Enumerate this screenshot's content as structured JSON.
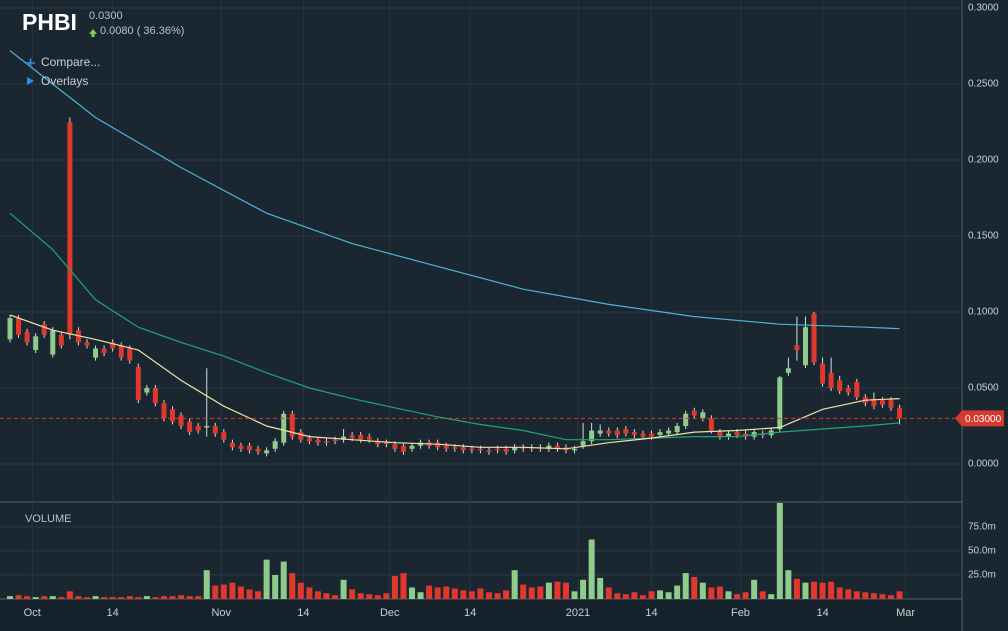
{
  "chart_data": {
    "type": "candlestick",
    "title": "PHBI",
    "last_price": "0.0300",
    "change": "0.0080 ( 36.36%)",
    "controls": [
      "Compare...",
      "Overlays"
    ],
    "volume_title": "VOLUME",
    "xlim": [
      -1.17,
      111.3
    ],
    "xticks": [
      {
        "value": 2.6,
        "label": "Oct"
      },
      {
        "value": 12,
        "label": "14"
      },
      {
        "value": 24.7,
        "label": "Nov"
      },
      {
        "value": 34.3,
        "label": "14"
      },
      {
        "value": 44.4,
        "label": "Dec"
      },
      {
        "value": 53.8,
        "label": "14"
      },
      {
        "value": 66.4,
        "label": "2021"
      },
      {
        "value": 75,
        "label": "14"
      },
      {
        "value": 85.4,
        "label": "Feb"
      },
      {
        "value": 95,
        "label": "14"
      },
      {
        "value": 104.7,
        "label": "Mar"
      }
    ],
    "ylim": [
      -0.0237,
      0.3053
    ],
    "yticks": [
      {
        "value": 0,
        "label": "0.0000"
      },
      {
        "value": 0.05,
        "label": "0.0500"
      },
      {
        "value": 0.1,
        "label": "0.1000"
      },
      {
        "value": 0.15,
        "label": "0.1500"
      },
      {
        "value": 0.2,
        "label": "0.2000"
      },
      {
        "value": 0.25,
        "label": "0.2500"
      },
      {
        "value": 0.3,
        "label": "0.3000"
      }
    ],
    "current": {
      "value": 0.03,
      "label": "0.03000",
      "color": "#d63a2f"
    },
    "up_color": "#8fcb8b",
    "down_color": "#e0382c",
    "open": [
      0.082,
      0.096,
      0.087,
      0.075,
      0.092,
      0.072,
      0.085,
      0.225,
      0.088,
      0.08,
      0.07,
      0.076,
      0.08,
      0.078,
      0.076,
      0.064,
      0.047,
      0.05,
      0.04,
      0.036,
      0.032,
      0.028,
      0.025,
      0.024,
      0.025,
      0.021,
      0.014,
      0.012,
      0.012,
      0.01,
      0.007,
      0.01,
      0.014,
      0.033,
      0.021,
      0.017,
      0.016,
      0.015,
      0.016,
      0.016,
      0.019,
      0.019,
      0.018,
      0.015,
      0.014,
      0.013,
      0.012,
      0.01,
      0.012,
      0.014,
      0.014,
      0.012,
      0.011,
      0.011,
      0.01,
      0.01,
      0.009,
      0.01,
      0.01,
      0.009,
      0.011,
      0.011,
      0.011,
      0.01,
      0.012,
      0.011,
      0.009,
      0.012,
      0.015,
      0.02,
      0.022,
      0.022,
      0.023,
      0.021,
      0.02,
      0.02,
      0.019,
      0.02,
      0.021,
      0.025,
      0.035,
      0.03,
      0.03,
      0.021,
      0.018,
      0.021,
      0.02,
      0.018,
      0.02,
      0.019,
      0.023,
      0.06,
      0.078,
      0.065,
      0.099,
      0.066,
      0.06,
      0.055,
      0.05,
      0.054,
      0.044,
      0.043,
      0.042,
      0.042,
      0.037
    ],
    "high": [
      0.098,
      0.098,
      0.089,
      0.086,
      0.094,
      0.09,
      0.087,
      0.228,
      0.09,
      0.082,
      0.078,
      0.078,
      0.082,
      0.08,
      0.078,
      0.066,
      0.052,
      0.052,
      0.042,
      0.038,
      0.034,
      0.03,
      0.027,
      0.063,
      0.027,
      0.023,
      0.016,
      0.014,
      0.014,
      0.012,
      0.011,
      0.017,
      0.035,
      0.035,
      0.023,
      0.019,
      0.018,
      0.017,
      0.018,
      0.023,
      0.021,
      0.021,
      0.02,
      0.017,
      0.016,
      0.015,
      0.014,
      0.014,
      0.016,
      0.016,
      0.016,
      0.014,
      0.013,
      0.013,
      0.012,
      0.012,
      0.011,
      0.012,
      0.012,
      0.013,
      0.013,
      0.013,
      0.013,
      0.014,
      0.014,
      0.013,
      0.012,
      0.027,
      0.027,
      0.026,
      0.024,
      0.024,
      0.025,
      0.023,
      0.022,
      0.022,
      0.023,
      0.024,
      0.027,
      0.035,
      0.037,
      0.036,
      0.032,
      0.023,
      0.022,
      0.023,
      0.022,
      0.023,
      0.022,
      0.024,
      0.058,
      0.07,
      0.097,
      0.097,
      0.1,
      0.07,
      0.07,
      0.058,
      0.052,
      0.056,
      0.046,
      0.047,
      0.044,
      0.044,
      0.039
    ],
    "low": [
      0.08,
      0.083,
      0.078,
      0.073,
      0.083,
      0.07,
      0.076,
      0.082,
      0.078,
      0.076,
      0.068,
      0.071,
      0.074,
      0.068,
      0.066,
      0.04,
      0.045,
      0.038,
      0.028,
      0.026,
      0.023,
      0.019,
      0.02,
      0.018,
      0.018,
      0.014,
      0.009,
      0.008,
      0.007,
      0.006,
      0.005,
      0.008,
      0.012,
      0.016,
      0.014,
      0.013,
      0.012,
      0.012,
      0.013,
      0.014,
      0.015,
      0.014,
      0.014,
      0.011,
      0.011,
      0.008,
      0.006,
      0.008,
      0.01,
      0.01,
      0.009,
      0.008,
      0.008,
      0.007,
      0.007,
      0.007,
      0.006,
      0.007,
      0.006,
      0.007,
      0.008,
      0.008,
      0.008,
      0.008,
      0.008,
      0.007,
      0.007,
      0.01,
      0.013,
      0.018,
      0.018,
      0.017,
      0.018,
      0.017,
      0.016,
      0.016,
      0.017,
      0.018,
      0.019,
      0.023,
      0.03,
      0.028,
      0.02,
      0.016,
      0.016,
      0.017,
      0.016,
      0.016,
      0.017,
      0.017,
      0.021,
      0.058,
      0.068,
      0.063,
      0.065,
      0.051,
      0.048,
      0.046,
      0.045,
      0.042,
      0.038,
      0.036,
      0.037,
      0.035,
      0.026
    ],
    "close": [
      0.096,
      0.085,
      0.08,
      0.084,
      0.085,
      0.088,
      0.078,
      0.085,
      0.08,
      0.078,
      0.076,
      0.073,
      0.076,
      0.07,
      0.068,
      0.042,
      0.05,
      0.04,
      0.03,
      0.028,
      0.025,
      0.021,
      0.022,
      0.025,
      0.02,
      0.016,
      0.011,
      0.01,
      0.009,
      0.008,
      0.009,
      0.015,
      0.033,
      0.018,
      0.016,
      0.015,
      0.014,
      0.014,
      0.015,
      0.018,
      0.017,
      0.016,
      0.016,
      0.013,
      0.013,
      0.01,
      0.008,
      0.012,
      0.014,
      0.012,
      0.011,
      0.01,
      0.01,
      0.009,
      0.009,
      0.009,
      0.008,
      0.009,
      0.008,
      0.011,
      0.01,
      0.01,
      0.01,
      0.012,
      0.01,
      0.009,
      0.01,
      0.015,
      0.022,
      0.022,
      0.02,
      0.019,
      0.02,
      0.019,
      0.018,
      0.018,
      0.021,
      0.022,
      0.025,
      0.033,
      0.032,
      0.034,
      0.022,
      0.018,
      0.02,
      0.019,
      0.018,
      0.021,
      0.019,
      0.022,
      0.057,
      0.063,
      0.075,
      0.09,
      0.067,
      0.053,
      0.05,
      0.048,
      0.047,
      0.044,
      0.04,
      0.038,
      0.039,
      0.037,
      0.03
    ],
    "volume": [
      3,
      4,
      3,
      2,
      3,
      3,
      2,
      8,
      3,
      2,
      3,
      2,
      2,
      2,
      3,
      2,
      3,
      2,
      3,
      3,
      4,
      3,
      3,
      30,
      14,
      15,
      17,
      13,
      10,
      8,
      41,
      25,
      39,
      27,
      17,
      12,
      8,
      6,
      4,
      20,
      10,
      6,
      5,
      4,
      6,
      24,
      27,
      12,
      7,
      14,
      12,
      13,
      11,
      9,
      8,
      11,
      7,
      6,
      9,
      30,
      15,
      12,
      13,
      17,
      18,
      17,
      8,
      20,
      62,
      22,
      12,
      6,
      5,
      7,
      4,
      8,
      9,
      7,
      14,
      27,
      23,
      17,
      12,
      13,
      8,
      5,
      7,
      20,
      8,
      5,
      100,
      30,
      21,
      17,
      18,
      17,
      18,
      12,
      10,
      8,
      7,
      6,
      5,
      4,
      8
    ],
    "vlim": [
      0,
      100
    ],
    "vticks": [
      {
        "value": 25,
        "label": "25.0m"
      },
      {
        "value": 50,
        "label": "50.0m"
      },
      {
        "value": 75,
        "label": "75.0m"
      }
    ],
    "averages": [
      {
        "color": "#4fb3d9",
        "x": [
          0,
          10,
          20,
          30,
          40,
          50,
          60,
          70,
          80,
          90,
          100,
          104
        ],
        "values": [
          0.272,
          0.228,
          0.195,
          0.165,
          0.145,
          0.13,
          0.115,
          0.105,
          0.097,
          0.092,
          0.09,
          0.089
        ]
      },
      {
        "color": "#1fa37a",
        "x": [
          0,
          5,
          10,
          15,
          20,
          25,
          30,
          35,
          40,
          45,
          50,
          55,
          60,
          65,
          70,
          75,
          80,
          85,
          90,
          95,
          100,
          104
        ],
        "values": [
          0.165,
          0.141,
          0.108,
          0.09,
          0.08,
          0.071,
          0.06,
          0.05,
          0.043,
          0.037,
          0.031,
          0.026,
          0.022,
          0.016,
          0.016,
          0.017,
          0.018,
          0.018,
          0.021,
          0.023,
          0.025,
          0.027
        ]
      },
      {
        "color": "#f0e2a8",
        "x": [
          0,
          5,
          10,
          15,
          20,
          25,
          30,
          35,
          40,
          45,
          50,
          55,
          60,
          65,
          70,
          75,
          80,
          85,
          90,
          95,
          100,
          104
        ],
        "values": [
          0.098,
          0.088,
          0.082,
          0.075,
          0.055,
          0.038,
          0.025,
          0.018,
          0.016,
          0.014,
          0.013,
          0.011,
          0.011,
          0.01,
          0.014,
          0.017,
          0.021,
          0.022,
          0.024,
          0.036,
          0.042,
          0.043
        ]
      }
    ]
  }
}
